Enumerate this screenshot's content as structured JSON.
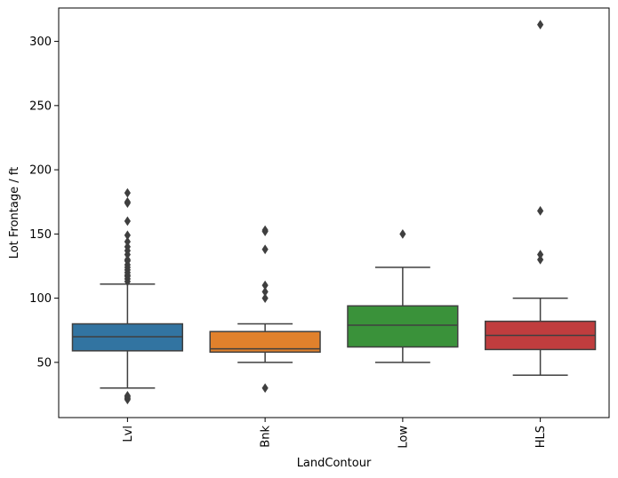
{
  "chart_data": {
    "type": "box",
    "xlabel": "LandContour",
    "ylabel": "Lot Frontage / ft",
    "ylim": [
      7,
      326
    ],
    "yticks": [
      50,
      100,
      150,
      200,
      250,
      300
    ],
    "grid": false,
    "legend": "none",
    "categories": [
      "Lvl",
      "Bnk",
      "Low",
      "HLS"
    ],
    "boxes": [
      {
        "category": "Lvl",
        "color": "#3274a1",
        "whisker_low": 30,
        "q1": 59,
        "median": 70,
        "q3": 80,
        "whisker_high": 111,
        "outliers": [
          21,
          22,
          23,
          24,
          113,
          115,
          117,
          118,
          120,
          122,
          124,
          126,
          129,
          130,
          134,
          137,
          140,
          144,
          149,
          160,
          174,
          175,
          182
        ]
      },
      {
        "category": "Bnk",
        "color": "#e1812c",
        "whisker_low": 50,
        "q1": 58,
        "median": 60.5,
        "q3": 74,
        "whisker_high": 80,
        "outliers": [
          30,
          100,
          105,
          110,
          138,
          152,
          153
        ]
      },
      {
        "category": "Low",
        "color": "#3a923a",
        "whisker_low": 50,
        "q1": 62,
        "median": 79,
        "q3": 94,
        "whisker_high": 124,
        "outliers": [
          150
        ]
      },
      {
        "category": "HLS",
        "color": "#c03d3e",
        "whisker_low": 40,
        "q1": 60,
        "median": 71,
        "q3": 82,
        "whisker_high": 100,
        "outliers": [
          130,
          134,
          168,
          313
        ]
      }
    ]
  }
}
